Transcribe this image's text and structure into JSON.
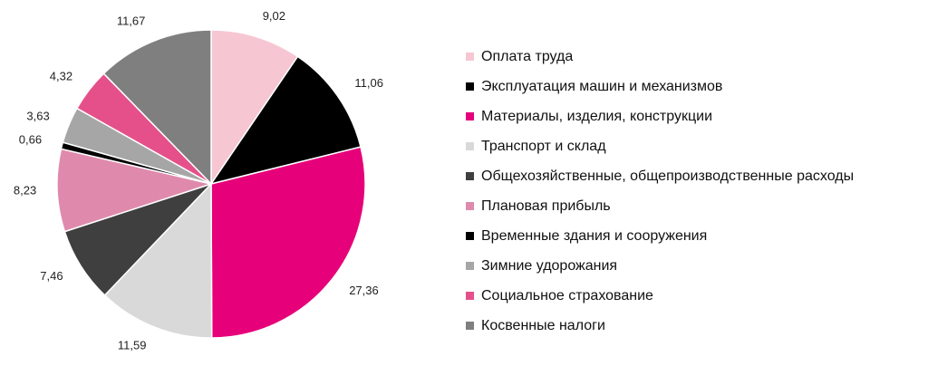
{
  "chart_data": {
    "type": "pie",
    "categories": [
      "Оплата труда",
      "Эксплуатация машин и механизмов",
      "Материалы, изделия, конструкции",
      "Транспорт и склад",
      "Общехозяйственные, общепроизводственные расходы",
      "Плановая прибыль",
      "Временные здания и сооружения",
      "Зимние удорожания",
      "Социальное страхование",
      "Косвенные налоги"
    ],
    "values": [
      9.02,
      11.06,
      27.36,
      11.59,
      7.46,
      8.23,
      0.66,
      3.63,
      4.32,
      11.67
    ],
    "value_labels": [
      "9,02",
      "11,06",
      "27,36",
      "11,59",
      "7,46",
      "8,23",
      "0,66",
      "3,63",
      "4,32",
      "11,67"
    ],
    "colors": [
      "#f7c6d3",
      "#000000",
      "#e6007a",
      "#d9d9d9",
      "#3f3f3f",
      "#df8aad",
      "#000000",
      "#a6a6a6",
      "#e5508a",
      "#7f7f7f"
    ],
    "start_angle": "top, clockwise",
    "legend_position": "right"
  }
}
